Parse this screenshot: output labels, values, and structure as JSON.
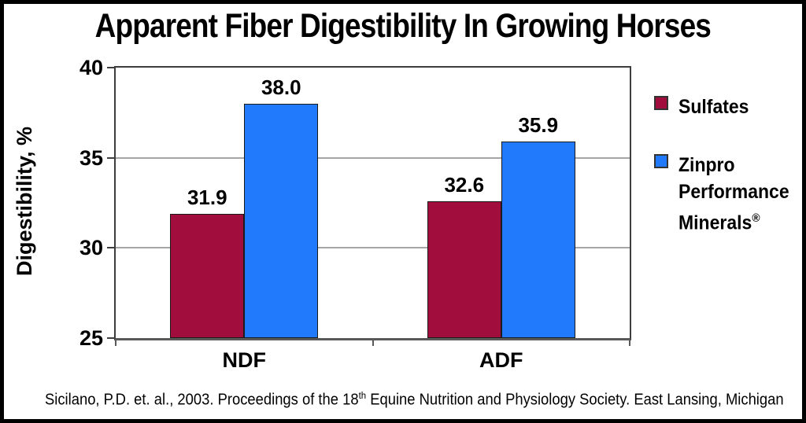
{
  "chart_data": {
    "type": "bar",
    "title": "Apparent Fiber Digestibility In Growing Horses",
    "categories": [
      "NDF",
      "ADF"
    ],
    "series": [
      {
        "name": "Sulfates",
        "color": "#A10D3C",
        "values": [
          31.9,
          32.6
        ]
      },
      {
        "name": "Zinpro Performance Minerals®",
        "color": "#2179FB",
        "values": [
          38.0,
          35.9
        ]
      }
    ],
    "xlabel": "",
    "ylabel": "Digestibility, %",
    "ylim": [
      25,
      40
    ],
    "yticks": [
      25,
      30,
      35,
      40
    ],
    "grid": true,
    "legend_position": "right",
    "value_labels": true,
    "value_decimals": 1
  },
  "legend": {
    "items": [
      {
        "label": "Sulfates",
        "color": "#A10D3C"
      },
      {
        "lines": [
          "Zinpro",
          "Performance",
          "Minerals"
        ],
        "suffix_sup": "®",
        "color": "#2179FB"
      }
    ]
  },
  "footer": {
    "citation_pre": "Sicilano, P.D. et. al., 2003. Proceedings of the 18",
    "citation_sup": "th",
    "citation_post": " Equine Nutrition and Physiology Society. East Lansing, Michigan"
  },
  "colors": {
    "axis": "#3d3d3d",
    "baseline": "#595959",
    "gridline": "#a6a6a6",
    "text": "#000000",
    "background": "#ffffff"
  }
}
